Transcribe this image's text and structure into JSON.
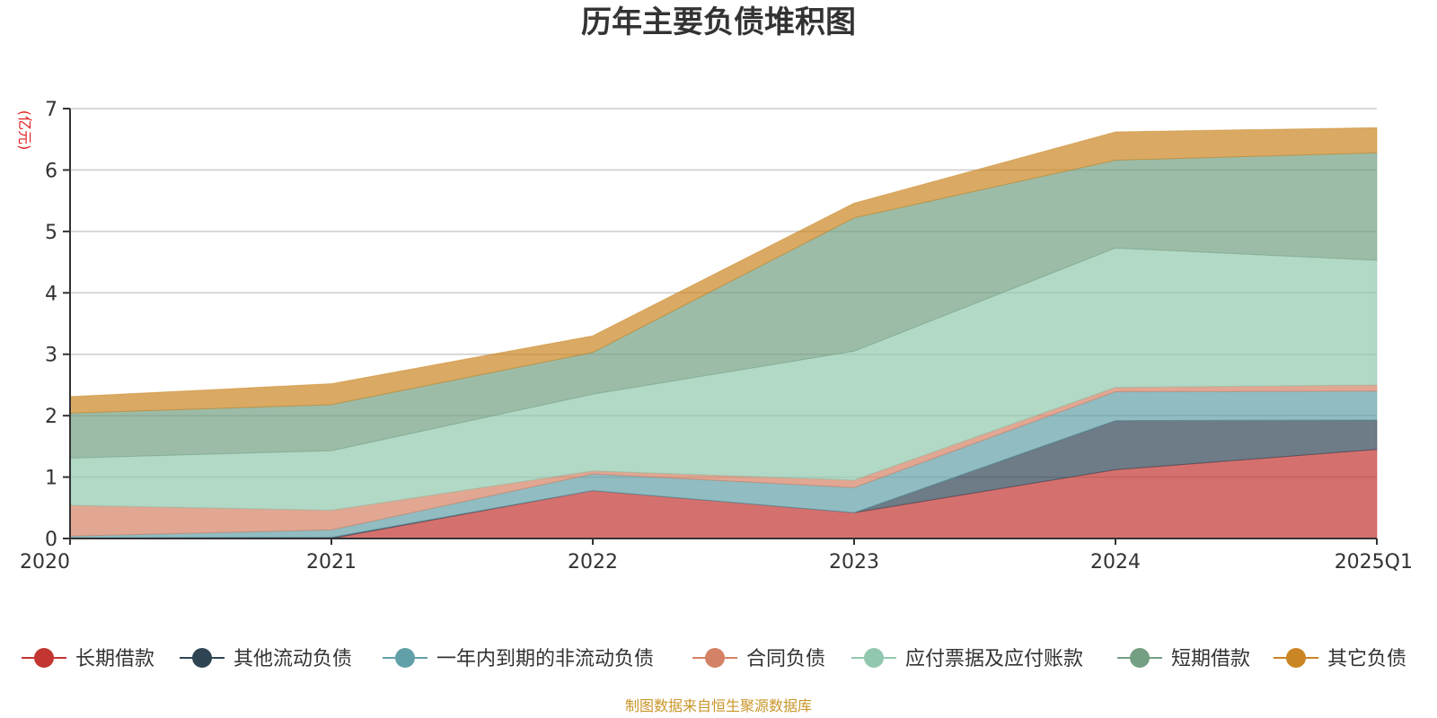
{
  "chart_data": {
    "type": "area",
    "stacked": true,
    "title": "历年主要负债堆积图",
    "ylabel": "(亿元)",
    "xlabel": "",
    "categories": [
      "2020",
      "2021",
      "2022",
      "2023",
      "2024",
      "2025Q1"
    ],
    "ylim": [
      0,
      7
    ],
    "yticks": [
      "0",
      "1",
      "2",
      "3",
      "4",
      "5",
      "6",
      "7"
    ],
    "grid": true,
    "legend_position": "bottom",
    "series": [
      {
        "name": "长期借款",
        "color": "#c23531",
        "values": [
          0.0,
          0.0,
          0.78,
          0.42,
          1.12,
          1.45
        ]
      },
      {
        "name": "其他流动负债",
        "color": "#2f4554",
        "values": [
          0.01,
          0.02,
          0.0,
          0.0,
          0.8,
          0.48
        ]
      },
      {
        "name": "一年内到期的非流动负债",
        "color": "#61a0a8",
        "values": [
          0.03,
          0.12,
          0.27,
          0.41,
          0.47,
          0.47
        ]
      },
      {
        "name": "合同负债",
        "color": "#d48265",
        "values": [
          0.5,
          0.32,
          0.05,
          0.12,
          0.07,
          0.1
        ]
      },
      {
        "name": "应付票据及应付账款",
        "color": "#91c7ae",
        "values": [
          0.77,
          0.97,
          1.25,
          2.1,
          2.27,
          2.03
        ]
      },
      {
        "name": "短期借款",
        "color": "#749f83",
        "values": [
          0.73,
          0.75,
          0.68,
          2.17,
          1.43,
          1.75
        ]
      },
      {
        "name": "其它负债",
        "color": "#ca8622",
        "values": [
          0.27,
          0.34,
          0.27,
          0.24,
          0.46,
          0.41
        ]
      }
    ],
    "source": "制图数据来自恒生聚源数据库"
  }
}
